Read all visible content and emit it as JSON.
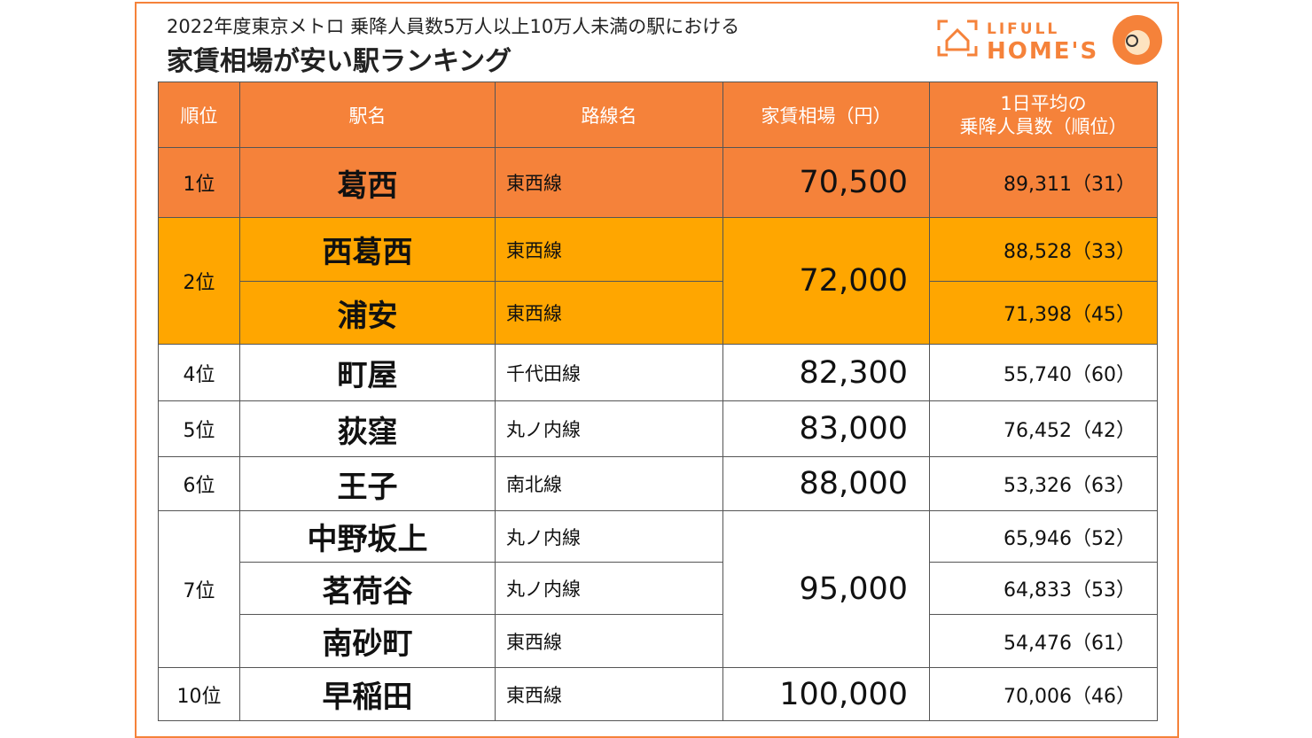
{
  "header": {
    "line1": "2022年度東京メトロ 乗降人員数5万人以上10万人未満の駅における",
    "line2": "家賃相場が安い駅ランキング"
  },
  "logo": {
    "top": "LIFULL",
    "bottom": "HOME'S"
  },
  "table": {
    "columns": [
      "順位",
      "駅名",
      "路線名",
      "家賃相場（円）",
      [
        "1日平均の",
        "乗降人員数（順位）"
      ]
    ],
    "groups": [
      {
        "rank": "1位",
        "rent": "70,500",
        "stations": [
          {
            "name": "葛西",
            "line": "東西線",
            "riders": "89,311（31）"
          }
        ]
      },
      {
        "rank": "2位",
        "rent": "72,000",
        "stations": [
          {
            "name": "西葛西",
            "line": "東西線",
            "riders": "88,528（33）"
          },
          {
            "name": "浦安",
            "line": "東西線",
            "riders": "71,398（45）"
          }
        ]
      },
      {
        "rank": "4位",
        "rent": "82,300",
        "stations": [
          {
            "name": "町屋",
            "line": "千代田線",
            "riders": "55,740（60）"
          }
        ]
      },
      {
        "rank": "5位",
        "rent": "83,000",
        "stations": [
          {
            "name": "荻窪",
            "line": "丸ノ内線",
            "riders": "76,452（42）"
          }
        ]
      },
      {
        "rank": "6位",
        "rent": "88,000",
        "stations": [
          {
            "name": "王子",
            "line": "南北線",
            "riders": "53,326（63）"
          }
        ]
      },
      {
        "rank": "7位",
        "rent": "95,000",
        "stations": [
          {
            "name": "中野坂上",
            "line": "丸ノ内線",
            "riders": "65,946（52）"
          },
          {
            "name": "茗荷谷",
            "line": "丸ノ内線",
            "riders": "64,833（53）"
          },
          {
            "name": "南砂町",
            "line": "東西線",
            "riders": "54,476（61）"
          }
        ]
      },
      {
        "rank": "10位",
        "rent": "100,000",
        "stations": [
          {
            "name": "早稲田",
            "line": "東西線",
            "riders": "70,006（46）"
          }
        ]
      }
    ]
  }
}
